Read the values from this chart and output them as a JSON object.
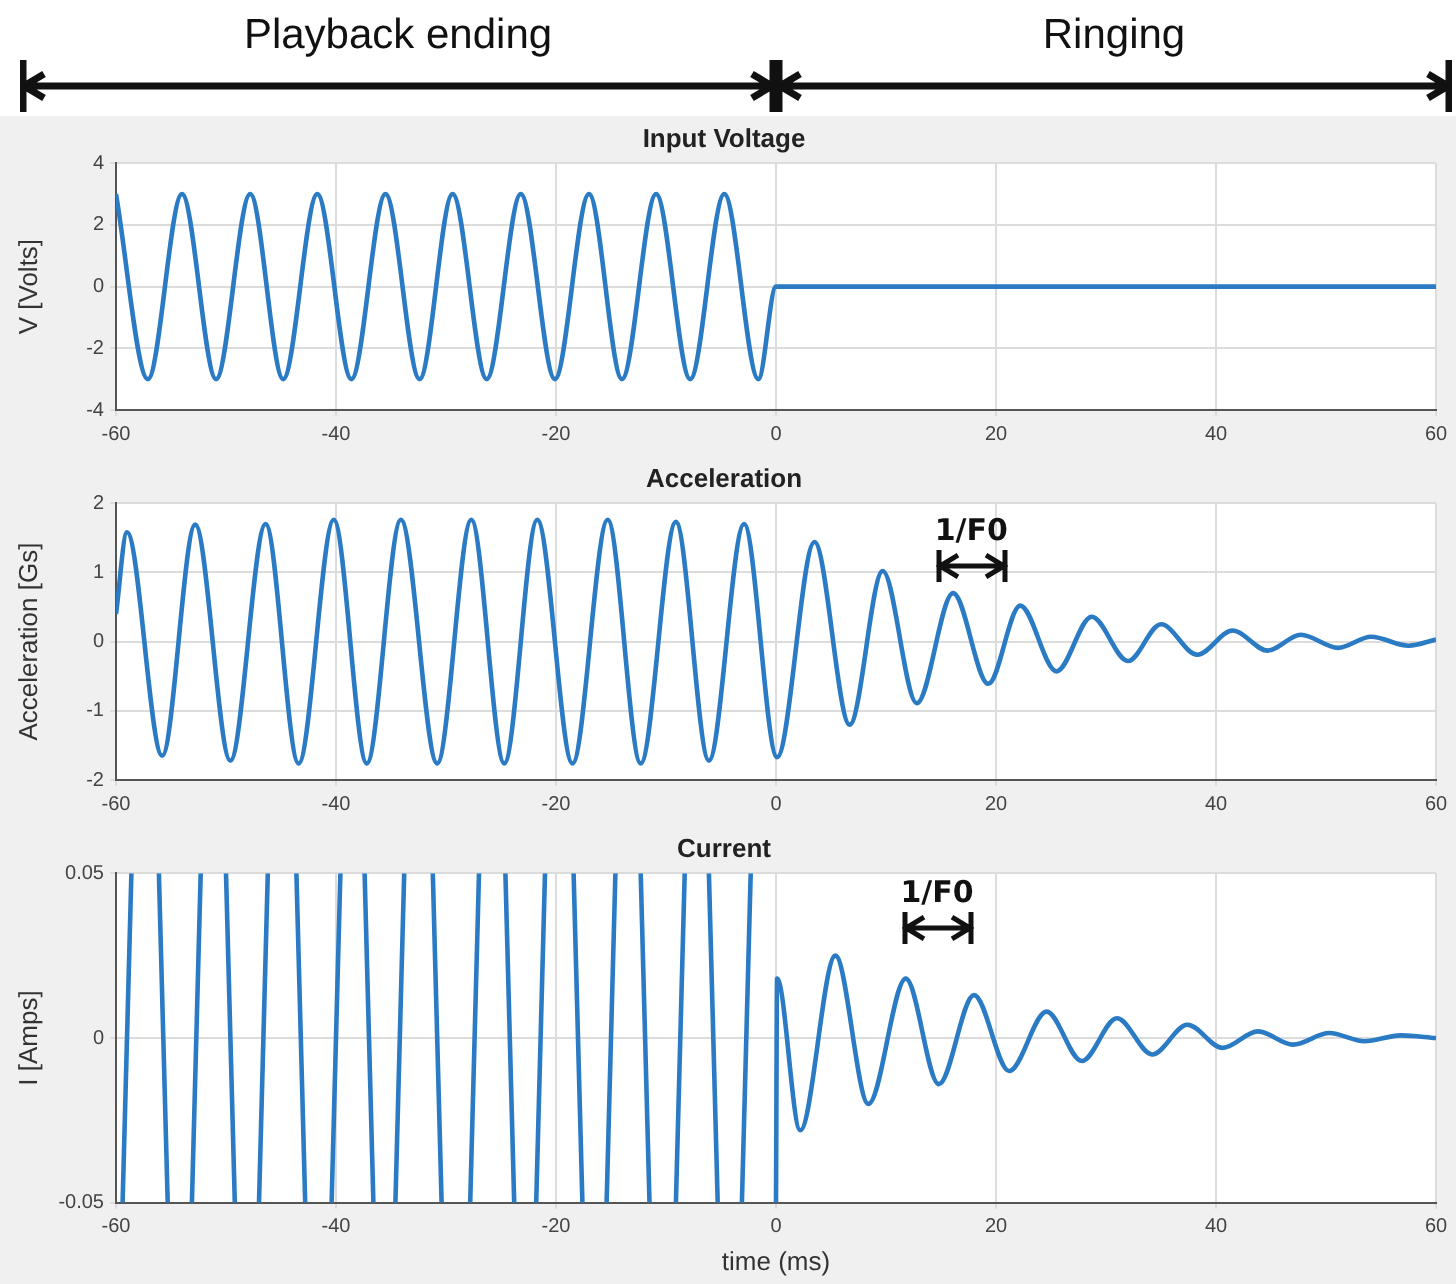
{
  "chart_data": [
    {
      "type": "line",
      "title": "Input Voltage",
      "ylabel": "V [Volts]",
      "xlim": [
        -60,
        60
      ],
      "ylim": [
        -4,
        4
      ],
      "xticks": [
        -60,
        -40,
        -20,
        0,
        20,
        40,
        60
      ],
      "yticks": [
        -4,
        -2,
        0,
        2,
        4
      ],
      "grid": true,
      "annotations": [
        "Playback ending",
        "Ringing"
      ],
      "series": [
        {
          "color": "#2a7bc4",
          "x": [
            -60,
            -57.1,
            -54,
            -50.9,
            -47.8,
            -44.8,
            -41.7,
            -38.6,
            -35.5,
            -32.4,
            -29.4,
            -26.3,
            -23.2,
            -20.1,
            -17,
            -14,
            -10.9,
            -7.8,
            -4.7,
            -1.6,
            0,
            60
          ],
          "values": [
            3,
            -3,
            3,
            -3,
            3,
            -3,
            3,
            -3,
            3,
            -3,
            3,
            -3,
            3,
            -3,
            3,
            -3,
            3,
            -3,
            3,
            -3,
            0,
            0
          ]
        }
      ]
    },
    {
      "type": "line",
      "title": "Acceleration",
      "ylabel": "Acceleration [Gs]",
      "xlim": [
        -60,
        60
      ],
      "ylim": [
        -2,
        2
      ],
      "xticks": [
        -60,
        -40,
        -20,
        0,
        20,
        40,
        60
      ],
      "yticks": [
        -2,
        -1,
        0,
        1,
        2
      ],
      "grid": true,
      "annotations": [
        "1/F0"
      ],
      "series": [
        {
          "color": "#2a7bc4",
          "x": [
            -60,
            -59,
            -55.8,
            -52.8,
            -49.6,
            -46.4,
            -43.4,
            -40.2,
            -37.2,
            -34.1,
            -30.8,
            -27.7,
            -24.7,
            -21.7,
            -18.5,
            -15.3,
            -12.3,
            -9.1,
            -6.1,
            -2.9,
            0.1,
            3.5,
            6.7,
            9.7,
            12.8,
            16.1,
            19.3,
            22.2,
            25.5,
            28.7,
            32,
            35,
            38.3,
            41.5,
            44.7,
            47.7,
            51.1,
            54.1,
            57.5,
            60
          ],
          "values": [
            0.4,
            1.58,
            -1.65,
            1.69,
            -1.72,
            1.7,
            -1.76,
            1.76,
            -1.76,
            1.76,
            -1.76,
            1.76,
            -1.76,
            1.76,
            -1.76,
            1.76,
            -1.76,
            1.73,
            -1.72,
            1.7,
            -1.67,
            1.44,
            -1.2,
            1.02,
            -0.89,
            0.7,
            -0.61,
            0.52,
            -0.43,
            0.36,
            -0.28,
            0.25,
            -0.19,
            0.16,
            -0.13,
            0.1,
            -0.09,
            0.07,
            -0.06,
            0.03
          ]
        }
      ]
    },
    {
      "type": "line",
      "title": "Current",
      "xlabel": "time (ms)",
      "ylabel": "I [Amps]",
      "xlim": [
        -60,
        60
      ],
      "ylim": [
        -0.05,
        0.05
      ],
      "xticks": [
        -60,
        -40,
        -20,
        0,
        20,
        40,
        60
      ],
      "yticks": [
        -0.05,
        0,
        0.05
      ],
      "grid": true,
      "annotations": [
        "1/F0"
      ],
      "series": [
        {
          "color": "#2a7bc4",
          "x": [
            -59.4,
            -58.6,
            -57.4,
            -56.1,
            -55.3,
            -54,
            -53.1,
            -52.3,
            -51,
            -50,
            -49.2,
            -48,
            -47,
            -46.2,
            -45,
            -43.6,
            -42.8,
            -41.5,
            -40.4,
            -39.6,
            -38.5,
            -37.4,
            -36.6,
            -35.5,
            -34.6,
            -33.8,
            -32.5,
            -31.2,
            -30.4,
            -29,
            -27.8,
            -27,
            -26,
            -24.6,
            -23.8,
            -23,
            -21.8,
            -21,
            -19.5,
            -18.4,
            -17.6,
            -16.5,
            -15.4,
            -14.6,
            -13.5,
            -12.3,
            -11.5,
            -10.3,
            -9.1,
            -8.3,
            -7.2,
            -6.1,
            -5.3,
            -4.2,
            -3.1,
            -2.3,
            -1.2,
            0,
            0.1,
            2.2,
            5.4,
            8.4,
            11.8,
            14.8,
            18,
            21.2,
            24.6,
            27.8,
            31,
            34.2,
            37.4,
            40.6,
            43.8,
            47,
            50.3,
            53.5,
            56.8,
            60
          ],
          "values": [
            -0.05,
            0.05,
            null,
            0.05,
            -0.05,
            null,
            -0.05,
            0.05,
            null,
            0.05,
            -0.05,
            null,
            -0.05,
            0.05,
            null,
            0.05,
            -0.05,
            null,
            -0.05,
            0.05,
            null,
            0.05,
            -0.05,
            null,
            -0.05,
            0.05,
            null,
            0.05,
            -0.05,
            null,
            -0.05,
            0.05,
            null,
            0.05,
            -0.05,
            null,
            -0.05,
            0.05,
            null,
            0.05,
            -0.05,
            null,
            -0.05,
            0.05,
            null,
            0.05,
            -0.05,
            null,
            -0.05,
            0.05,
            null,
            0.05,
            -0.05,
            null,
            -0.05,
            0.05,
            null,
            -0.05,
            0.018,
            -0.028,
            0.025,
            -0.02,
            0.018,
            -0.014,
            0.013,
            -0.01,
            0.008,
            -0.007,
            0.006,
            -0.005,
            0.004,
            -0.003,
            0.002,
            -0.002,
            0.0015,
            -0.001,
            0.0008,
            0
          ]
        }
      ]
    }
  ]
}
